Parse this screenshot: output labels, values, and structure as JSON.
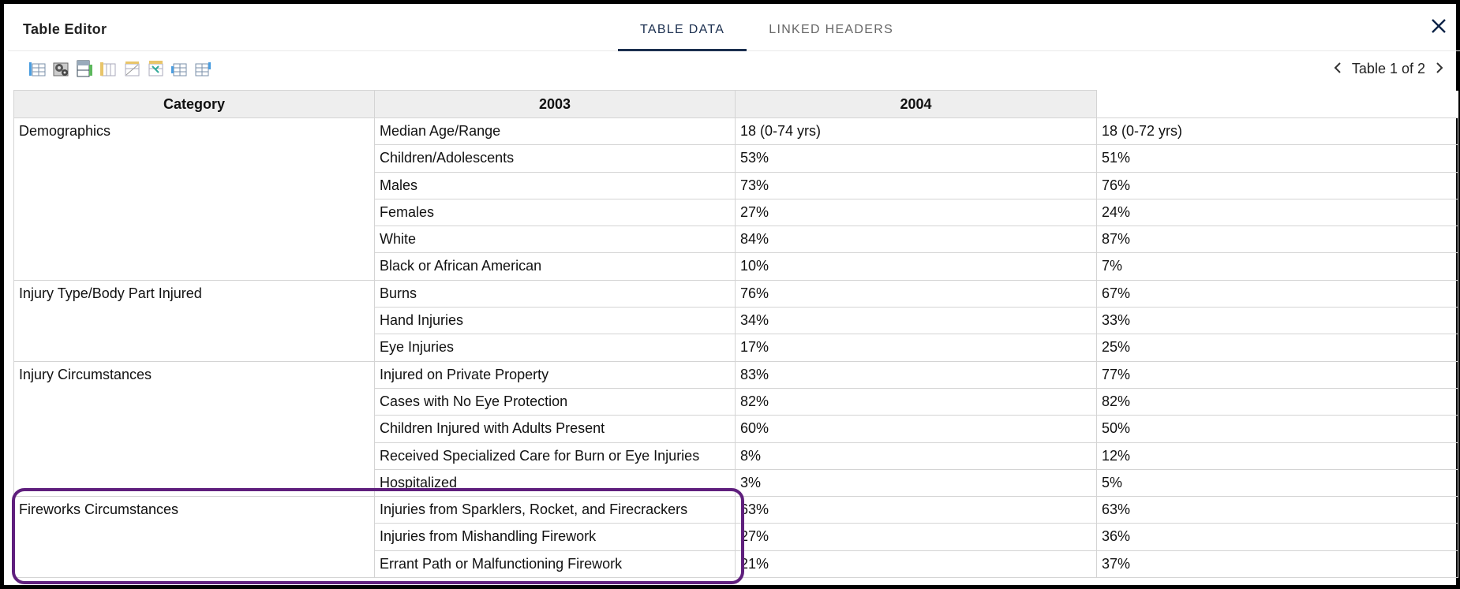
{
  "header": {
    "title": "Table Editor",
    "tabs": [
      {
        "label": "TABLE DATA",
        "active": true
      },
      {
        "label": "LINKED HEADERS",
        "active": false
      }
    ],
    "close_icon": "close-icon"
  },
  "toolbar": {
    "icons": [
      "insert-column-icon",
      "settings-icon",
      "header-cells-icon",
      "delete-column-icon",
      "delete-row-icon",
      "merge-cells-icon",
      "insert-row-icon",
      "split-cells-icon"
    ]
  },
  "pager": {
    "label": "Table 1 of 2",
    "prev_icon": "chevron-left-icon",
    "next_icon": "chevron-right-icon"
  },
  "table": {
    "headers": [
      "Category",
      "2003",
      "2004"
    ],
    "groups": [
      {
        "category": "Demographics",
        "rows": [
          [
            "Median Age/Range",
            "18 (0-74 yrs)",
            "18 (0-72 yrs)"
          ],
          [
            "Children/Adolescents",
            "53%",
            "51%"
          ],
          [
            "Males",
            "73%",
            "76%"
          ],
          [
            "Females",
            "27%",
            "24%"
          ],
          [
            "White",
            "84%",
            "87%"
          ],
          [
            "Black or African American",
            "10%",
            "7%"
          ]
        ]
      },
      {
        "category": "Injury Type/Body Part Injured",
        "rows": [
          [
            "Burns",
            "76%",
            "67%"
          ],
          [
            "Hand Injuries",
            "34%",
            "33%"
          ],
          [
            "Eye Injuries",
            "17%",
            "25%"
          ]
        ]
      },
      {
        "category": "Injury Circumstances",
        "rows": [
          [
            "Injured on Private Property",
            "83%",
            "77%"
          ],
          [
            "Cases with No Eye Protection",
            "82%",
            "82%"
          ],
          [
            "Children Injured with Adults Present",
            "60%",
            "50%"
          ],
          [
            "Received Specialized Care for Burn or Eye Injuries",
            "8%",
            "12%"
          ],
          [
            "Hospitalized",
            "3%",
            "5%"
          ]
        ]
      },
      {
        "category": "Fireworks Circumstances",
        "rows": [
          [
            "Injuries from Sparklers, Rocket, and Firecrackers",
            "63%",
            "63%"
          ],
          [
            "Injuries from Mishandling Firework",
            "27%",
            "36%"
          ],
          [
            "Errant Path or Malfunctioning Firework",
            "21%",
            "37%"
          ]
        ]
      }
    ]
  },
  "colors": {
    "accent": "#1b2f4f",
    "highlight": "#5f1f7d",
    "header_bg": "#eeeeee",
    "border": "#d4d4d4"
  }
}
